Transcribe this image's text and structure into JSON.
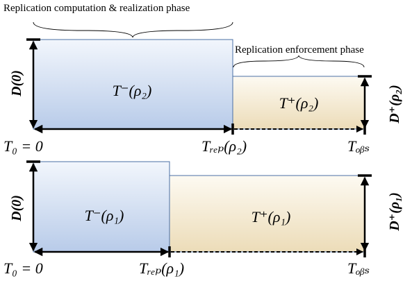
{
  "top": {
    "phase_compute": "Replication computation & realization phase",
    "phase_enforce": "Replication enforcement phase",
    "d0": "D(0)",
    "t_minus": "T⁻(ρ₂)",
    "t_plus": "T⁺(ρ₂)",
    "d_plus": "D⁺(ρ₂)",
    "t0": "T₀ = 0",
    "t_rep": "Tᵣₑₚ(ρ₂)",
    "t_obs": "Tₒᵦₛ"
  },
  "bottom": {
    "d0": "D(0)",
    "t_minus": "T⁻(ρ₁)",
    "t_plus": "T⁺(ρ₁)",
    "d_plus": "D⁺(ρ₁)",
    "t0": "T₀ = 0",
    "t_rep": "Tᵣₑₚ(ρ₁)",
    "t_obs": "Tₒᵦₛ"
  }
}
